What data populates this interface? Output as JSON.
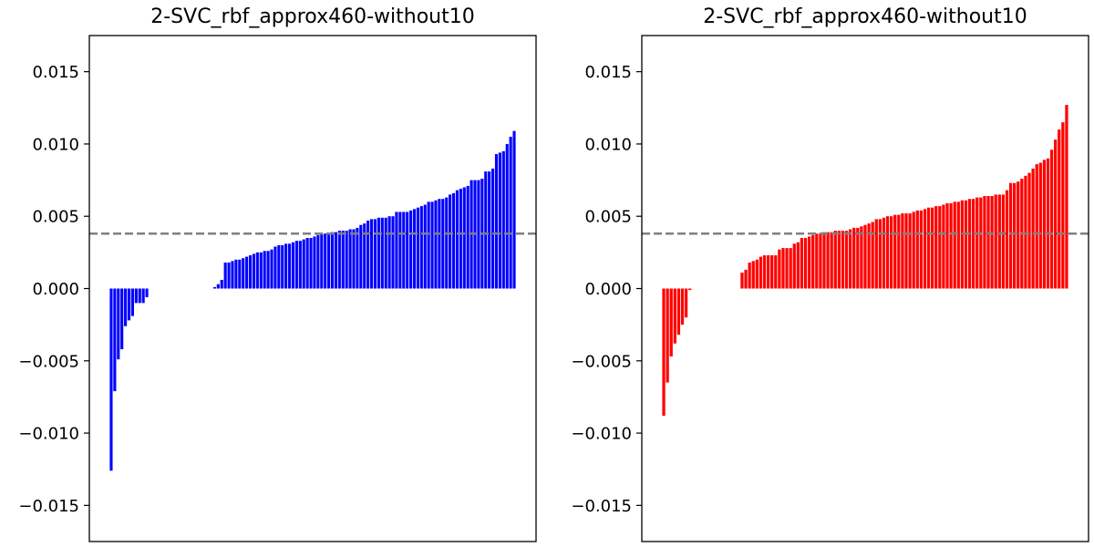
{
  "chart_data": [
    {
      "type": "bar",
      "title": "2-SVC_rbf_approx460-without10",
      "xlabel": "",
      "ylabel": "",
      "ylim": [
        -0.0175,
        0.0175
      ],
      "yticks": [
        "0.015",
        "0.010",
        "0.005",
        "0.000",
        "−0.005",
        "−0.010",
        "−0.015"
      ],
      "ytick_values": [
        0.015,
        0.01,
        0.005,
        0.0,
        -0.005,
        -0.01,
        -0.015
      ],
      "bar_color": "#0000ff",
      "reference_line": {
        "value": 0.0038,
        "style": "dashed",
        "color": "#808080"
      },
      "grid": false,
      "values": [
        -0.0126,
        -0.0071,
        -0.0049,
        -0.0042,
        -0.0026,
        -0.0022,
        -0.0019,
        -0.001,
        -0.001,
        -0.001,
        -0.0006,
        0,
        0,
        0,
        0,
        0,
        0,
        0,
        0,
        0,
        0,
        0,
        0,
        0,
        0,
        0,
        0,
        0,
        0,
        0.0001,
        0.0003,
        0.0006,
        0.0018,
        0.0018,
        0.0019,
        0.002,
        0.002,
        0.0021,
        0.0022,
        0.0023,
        0.0024,
        0.0025,
        0.0025,
        0.0026,
        0.0026,
        0.0027,
        0.0029,
        0.003,
        0.003,
        0.0031,
        0.0031,
        0.0032,
        0.0033,
        0.0033,
        0.0034,
        0.0035,
        0.0035,
        0.0036,
        0.0037,
        0.0038,
        0.0038,
        0.0038,
        0.0039,
        0.0039,
        0.004,
        0.004,
        0.004,
        0.0041,
        0.0041,
        0.0042,
        0.0044,
        0.0045,
        0.0047,
        0.0048,
        0.0048,
        0.0049,
        0.0049,
        0.0049,
        0.005,
        0.005,
        0.0053,
        0.0053,
        0.0053,
        0.0053,
        0.0054,
        0.0055,
        0.0056,
        0.0057,
        0.0058,
        0.006,
        0.006,
        0.0061,
        0.0062,
        0.0062,
        0.0063,
        0.0065,
        0.0066,
        0.0068,
        0.0069,
        0.007,
        0.0071,
        0.0075,
        0.0075,
        0.0075,
        0.0076,
        0.0081,
        0.0081,
        0.0083,
        0.0093,
        0.0094,
        0.0095,
        0.01,
        0.0105,
        0.0109
      ]
    },
    {
      "type": "bar",
      "title": "2-SVC_rbf_approx460-without10",
      "xlabel": "",
      "ylabel": "",
      "ylim": [
        -0.0175,
        0.0175
      ],
      "yticks": [
        "0.015",
        "0.010",
        "0.005",
        "0.000",
        "−0.005",
        "−0.010",
        "−0.015"
      ],
      "ytick_values": [
        0.015,
        0.01,
        0.005,
        0.0,
        -0.005,
        -0.01,
        -0.015
      ],
      "bar_color": "#ff0000",
      "reference_line": {
        "value": 0.0038,
        "style": "dashed",
        "color": "#808080"
      },
      "grid": false,
      "values": [
        -0.0088,
        -0.0065,
        -0.0047,
        -0.0038,
        -0.0032,
        -0.0025,
        -0.002,
        -0.0001,
        0,
        0,
        0,
        0,
        0,
        0,
        0,
        0,
        0,
        0,
        0,
        0,
        0,
        0.0011,
        0.0013,
        0.0018,
        0.0019,
        0.002,
        0.0022,
        0.0023,
        0.0023,
        0.0023,
        0.0023,
        0.0027,
        0.0028,
        0.0028,
        0.0028,
        0.0031,
        0.0032,
        0.0035,
        0.0035,
        0.0036,
        0.0037,
        0.0038,
        0.0038,
        0.0039,
        0.0039,
        0.0039,
        0.004,
        0.004,
        0.004,
        0.004,
        0.0041,
        0.0042,
        0.0042,
        0.0043,
        0.0044,
        0.0045,
        0.0046,
        0.0048,
        0.0048,
        0.0049,
        0.005,
        0.005,
        0.0051,
        0.0051,
        0.0052,
        0.0052,
        0.0052,
        0.0053,
        0.0054,
        0.0054,
        0.0055,
        0.0056,
        0.0056,
        0.0057,
        0.0057,
        0.0058,
        0.0059,
        0.0059,
        0.006,
        0.006,
        0.0061,
        0.0061,
        0.0062,
        0.0062,
        0.0063,
        0.0063,
        0.0064,
        0.0064,
        0.0064,
        0.0065,
        0.0065,
        0.0065,
        0.0068,
        0.0073,
        0.0073,
        0.0074,
        0.0076,
        0.0078,
        0.008,
        0.0083,
        0.0086,
        0.0087,
        0.0089,
        0.009,
        0.0096,
        0.0103,
        0.011,
        0.0115,
        0.0127
      ]
    }
  ]
}
